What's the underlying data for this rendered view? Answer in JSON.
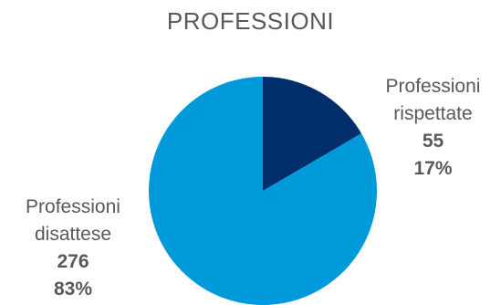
{
  "chart_data": {
    "type": "pie",
    "title": "PROFESSIONI",
    "slices": [
      {
        "name_lines": [
          "Professioni",
          "rispettate"
        ],
        "value": 55,
        "percent_label": "17%",
        "color": "#002F6C"
      },
      {
        "name_lines": [
          "Professioni",
          "disattese"
        ],
        "value": 276,
        "percent_label": "83%",
        "color": "#0099DA"
      }
    ],
    "start_angle_deg": 0,
    "direction": "clockwise",
    "legend": "none"
  }
}
